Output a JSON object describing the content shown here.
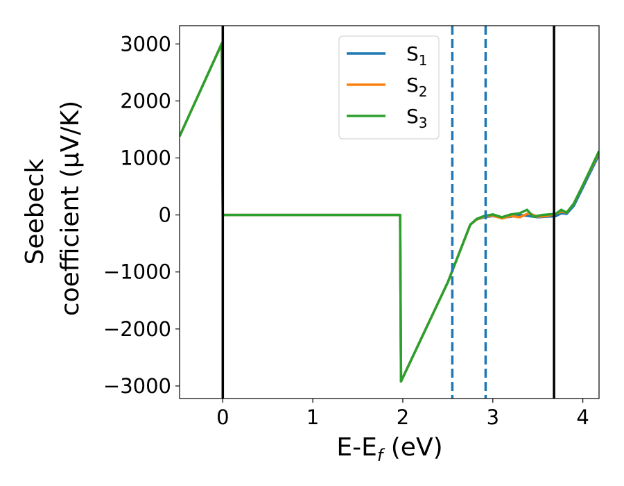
{
  "chart_data": {
    "type": "line",
    "xlabel": "E-E",
    "xlabel_sub": "f",
    "xlabel_unit": " (eV)",
    "ylabel_line1": "Seebeck",
    "ylabel_line2": "coefficient  (μV/K)",
    "xlim": [
      -0.48,
      4.18
    ],
    "ylim": [
      -3220,
      3320
    ],
    "x_ticks": [
      0,
      1,
      2,
      3,
      4
    ],
    "x_tick_labels": [
      "0",
      "1",
      "2",
      "3",
      "4"
    ],
    "y_ticks": [
      3000,
      2000,
      1000,
      0,
      -1000,
      -2000,
      -3000
    ],
    "y_tick_labels": [
      "3000",
      "2000",
      "1000",
      "0",
      "−1000",
      "−2000",
      "−3000"
    ],
    "grid": false,
    "legend_position": "top-center",
    "vertical_lines": [
      {
        "x": 0.0,
        "style": "solid",
        "color": "#000000"
      },
      {
        "x": 3.68,
        "style": "solid",
        "color": "#000000"
      },
      {
        "x": 2.55,
        "style": "dashed",
        "color": "#1f77b4"
      },
      {
        "x": 2.92,
        "style": "dashed",
        "color": "#1f77b4"
      }
    ],
    "series": [
      {
        "name": "S",
        "sub": "1",
        "color": "#1f77b4",
        "x": [
          -0.48,
          -0.01,
          0.0,
          1.97,
          1.98,
          2.5,
          2.75,
          2.82,
          2.9,
          3.0,
          3.1,
          3.2,
          3.3,
          3.4,
          3.5,
          3.6,
          3.7,
          3.76,
          3.82,
          3.9,
          4.0,
          4.18
        ],
        "y": [
          1380,
          3010,
          0,
          0,
          -2920,
          -1180,
          -170,
          -80,
          -40,
          -20,
          -50,
          -30,
          0,
          -20,
          -40,
          -30,
          -20,
          30,
          20,
          160,
          480,
          1060
        ]
      },
      {
        "name": "S",
        "sub": "2",
        "color": "#ff7f0e",
        "x": [
          -0.48,
          -0.01,
          0.0,
          1.97,
          1.98,
          2.5,
          2.75,
          2.82,
          2.9,
          3.0,
          3.1,
          3.2,
          3.3,
          3.4,
          3.5,
          3.6,
          3.7,
          3.76,
          3.82,
          3.9,
          4.0,
          4.18
        ],
        "y": [
          1380,
          3010,
          0,
          0,
          -2920,
          -1180,
          -170,
          -80,
          -30,
          -10,
          -60,
          -20,
          -40,
          30,
          -30,
          -20,
          20,
          60,
          40,
          200,
          520,
          1100
        ]
      },
      {
        "name": "S",
        "sub": "3",
        "color": "#2ca02c",
        "x": [
          -0.48,
          -0.01,
          0.0,
          1.97,
          1.98,
          2.5,
          2.75,
          2.82,
          2.9,
          3.0,
          3.1,
          3.2,
          3.3,
          3.38,
          3.45,
          3.55,
          3.7,
          3.76,
          3.82,
          3.9,
          4.0,
          4.18
        ],
        "y": [
          1380,
          3010,
          0,
          0,
          -2920,
          -1180,
          -170,
          -70,
          -20,
          10,
          -40,
          10,
          30,
          90,
          -30,
          0,
          20,
          90,
          40,
          200,
          520,
          1120
        ]
      }
    ]
  }
}
